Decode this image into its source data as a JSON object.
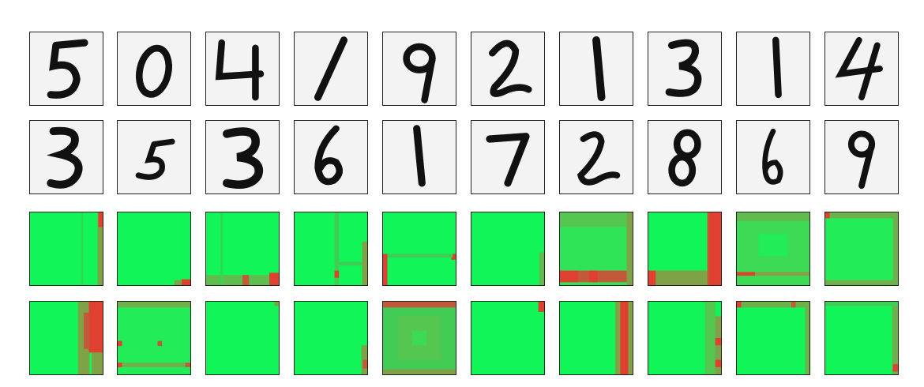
{
  "colors": {
    "digit_background": "#f3f3f3",
    "digit_ink": "#111111",
    "map_green": "#11f559",
    "map_red": "#e0402f",
    "tile_border": "#222222"
  },
  "digit_rows": [
    [
      "5",
      "0",
      "4",
      "1",
      "9",
      "2",
      "1",
      "3",
      "1",
      "4"
    ],
    [
      "3",
      "5",
      "3",
      "6",
      "1",
      "7",
      "2",
      "8",
      "6",
      "9"
    ]
  ]
}
